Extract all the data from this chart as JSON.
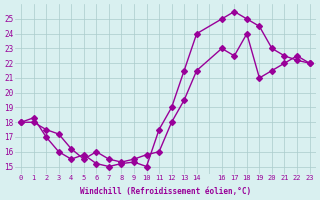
{
  "line1_x": [
    0,
    1,
    2,
    3,
    4,
    5,
    6,
    7,
    8,
    9,
    10,
    11,
    12,
    13,
    14,
    16,
    17,
    18,
    19,
    20,
    21,
    22,
    23
  ],
  "line1_y": [
    18,
    18.3,
    17,
    16,
    15.5,
    15.8,
    15.2,
    15,
    15.2,
    15.3,
    15,
    17.5,
    19.0,
    21.5,
    24.0,
    25.0,
    25.5,
    25.0,
    24.5,
    23.0,
    22.5,
    22.2,
    22.0
  ],
  "line2_x": [
    0,
    1,
    2,
    3,
    4,
    5,
    6,
    7,
    8,
    9,
    10,
    11,
    12,
    13,
    14,
    16,
    17,
    18,
    19,
    20,
    21,
    22,
    23
  ],
  "line2_y": [
    18,
    18,
    17.5,
    17.2,
    16.2,
    15.5,
    16.0,
    15.5,
    15.3,
    15.5,
    15.8,
    16.0,
    18.0,
    19.5,
    21.5,
    23.0,
    22.5,
    24.0,
    21.0,
    21.5,
    22.0,
    22.5,
    22.0
  ],
  "line_color": "#990099",
  "bg_color": "#d9f0f0",
  "grid_color": "#aacccc",
  "xlabel": "Windchill (Refroidissement éolien,°C)",
  "ylim": [
    14.5,
    26
  ],
  "xlim": [
    -0.5,
    23.5
  ],
  "yticks": [
    15,
    16,
    17,
    18,
    19,
    20,
    21,
    22,
    23,
    24,
    25
  ],
  "xticks": [
    0,
    1,
    2,
    3,
    4,
    5,
    6,
    7,
    8,
    9,
    10,
    11,
    12,
    13,
    14,
    15,
    16,
    17,
    18,
    19,
    20,
    21,
    22,
    23
  ],
  "xtick_labels": [
    "0",
    "1",
    "2",
    "3",
    "4",
    "5",
    "6",
    "7",
    "8",
    "9",
    "10",
    "11",
    "12",
    "13",
    "14",
    "",
    "16",
    "17",
    "18",
    "19",
    "20",
    "21",
    "22",
    "23"
  ],
  "marker": "D",
  "markersize": 3,
  "linewidth": 1.0
}
